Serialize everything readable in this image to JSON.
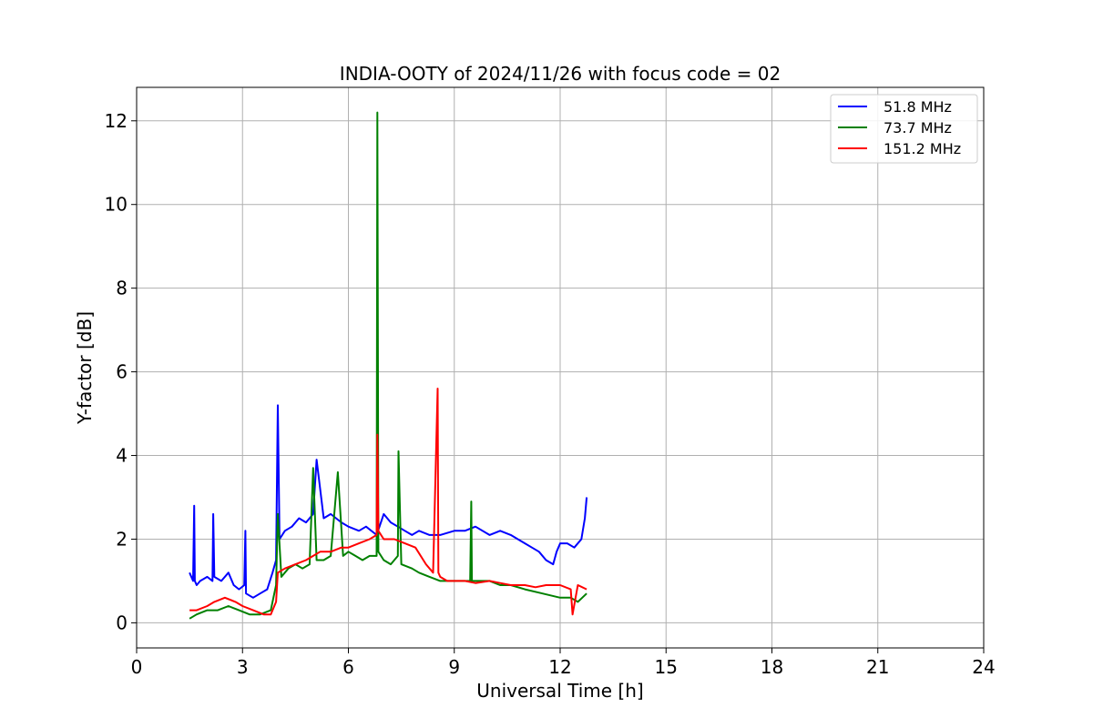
{
  "chart_data": {
    "type": "line",
    "title": "INDIA-OOTY of 2024/11/26 with focus code = 02",
    "xlabel": "Universal Time [h]",
    "ylabel": "Y-factor [dB]",
    "xlim": [
      0,
      24
    ],
    "ylim": [
      -0.6,
      12.8
    ],
    "xticks": [
      0,
      3,
      6,
      9,
      12,
      15,
      18,
      21,
      24
    ],
    "yticks": [
      0,
      2,
      4,
      6,
      8,
      10,
      12
    ],
    "grid": true,
    "legend_position": "top-right",
    "series": [
      {
        "name": " 51.8 MHz",
        "color": "#0000ff",
        "x": [
          1.5,
          1.6,
          1.63,
          1.65,
          1.7,
          1.8,
          2.0,
          2.15,
          2.17,
          2.2,
          2.4,
          2.6,
          2.75,
          2.9,
          3.05,
          3.08,
          3.1,
          3.3,
          3.5,
          3.7,
          3.85,
          3.95,
          4.0,
          4.05,
          4.2,
          4.4,
          4.6,
          4.8,
          5.0,
          5.1,
          5.3,
          5.5,
          5.8,
          6.0,
          6.3,
          6.5,
          6.8,
          7.0,
          7.2,
          7.4,
          7.6,
          7.8,
          8.0,
          8.3,
          8.6,
          9.0,
          9.3,
          9.6,
          10.0,
          10.3,
          10.6,
          10.8,
          11.0,
          11.2,
          11.4,
          11.6,
          11.8,
          11.9,
          12.0,
          12.2,
          12.4,
          12.6,
          12.7,
          12.75
        ],
        "y": [
          1.2,
          1.0,
          2.8,
          1.0,
          0.9,
          1.0,
          1.1,
          1.0,
          2.6,
          1.1,
          1.0,
          1.2,
          0.9,
          0.8,
          0.9,
          2.2,
          0.7,
          0.6,
          0.7,
          0.8,
          1.2,
          1.5,
          5.2,
          2.0,
          2.2,
          2.3,
          2.5,
          2.4,
          2.6,
          3.9,
          2.5,
          2.6,
          2.4,
          2.3,
          2.2,
          2.3,
          2.1,
          2.6,
          2.4,
          2.3,
          2.2,
          2.1,
          2.2,
          2.1,
          2.1,
          2.2,
          2.2,
          2.3,
          2.1,
          2.2,
          2.1,
          2.0,
          1.9,
          1.8,
          1.7,
          1.5,
          1.4,
          1.7,
          1.9,
          1.9,
          1.8,
          2.0,
          2.5,
          3.0
        ]
      },
      {
        "name": " 73.7 MHz",
        "color": "#008000",
        "x": [
          1.5,
          1.7,
          2.0,
          2.3,
          2.6,
          2.9,
          3.2,
          3.5,
          3.8,
          3.95,
          4.0,
          4.1,
          4.3,
          4.5,
          4.7,
          4.9,
          5.0,
          5.1,
          5.3,
          5.5,
          5.7,
          5.85,
          6.0,
          6.2,
          6.4,
          6.6,
          6.8,
          6.82,
          6.85,
          7.0,
          7.2,
          7.4,
          7.42,
          7.5,
          7.8,
          8.0,
          8.3,
          8.6,
          9.0,
          9.45,
          9.48,
          9.5,
          10.0,
          10.3,
          10.6,
          11.0,
          11.5,
          12.0,
          12.3,
          12.5,
          12.75
        ],
        "y": [
          0.1,
          0.2,
          0.3,
          0.3,
          0.4,
          0.3,
          0.2,
          0.2,
          0.3,
          0.9,
          2.6,
          1.1,
          1.3,
          1.4,
          1.3,
          1.4,
          3.7,
          1.5,
          1.5,
          1.6,
          3.6,
          1.6,
          1.7,
          1.6,
          1.5,
          1.6,
          1.6,
          12.2,
          1.7,
          1.5,
          1.4,
          1.6,
          4.1,
          1.4,
          1.3,
          1.2,
          1.1,
          1.0,
          1.0,
          1.0,
          2.9,
          1.0,
          1.0,
          0.9,
          0.9,
          0.8,
          0.7,
          0.6,
          0.6,
          0.5,
          0.7
        ]
      },
      {
        "name": "151.2 MHz",
        "color": "#ff0000",
        "x": [
          1.5,
          1.7,
          2.0,
          2.2,
          2.5,
          2.8,
          3.0,
          3.3,
          3.6,
          3.8,
          3.95,
          4.0,
          4.2,
          4.5,
          4.8,
          5.0,
          5.2,
          5.5,
          5.8,
          6.0,
          6.3,
          6.6,
          6.8,
          6.82,
          6.85,
          7.0,
          7.3,
          7.6,
          7.9,
          8.2,
          8.4,
          8.53,
          8.55,
          8.6,
          8.8,
          9.0,
          9.3,
          9.6,
          10.0,
          10.3,
          10.6,
          11.0,
          11.3,
          11.6,
          12.0,
          12.3,
          12.35,
          12.5,
          12.75
        ],
        "y": [
          0.3,
          0.3,
          0.4,
          0.5,
          0.6,
          0.5,
          0.4,
          0.3,
          0.2,
          0.2,
          0.5,
          1.2,
          1.3,
          1.4,
          1.5,
          1.6,
          1.7,
          1.7,
          1.8,
          1.8,
          1.9,
          2.0,
          2.1,
          4.5,
          2.2,
          2.0,
          2.0,
          1.9,
          1.8,
          1.4,
          1.2,
          5.6,
          1.2,
          1.1,
          1.0,
          1.0,
          1.0,
          0.95,
          1.0,
          0.95,
          0.9,
          0.9,
          0.85,
          0.9,
          0.9,
          0.8,
          0.2,
          0.9,
          0.8
        ]
      }
    ]
  }
}
